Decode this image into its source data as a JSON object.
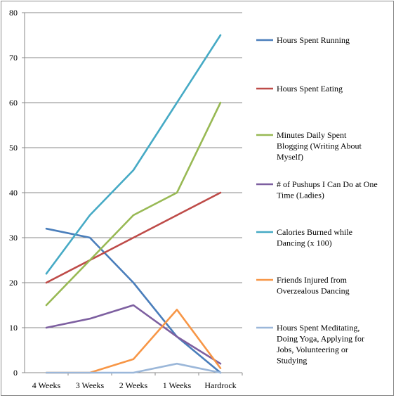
{
  "chart_data": {
    "type": "line",
    "title": "",
    "xlabel": "",
    "ylabel": "",
    "categories": [
      "4 Weeks",
      "3 Weeks",
      "2 Weeks",
      "1 Weeks",
      "Hardrock"
    ],
    "ylim": [
      0,
      80
    ],
    "yticks": [
      0,
      10,
      20,
      30,
      40,
      50,
      60,
      70,
      80
    ],
    "grid": "horizontal",
    "legend_position": "right",
    "series": [
      {
        "name": "Hours Spent Running",
        "color": "#4a7ebb",
        "values": [
          32,
          30,
          20,
          8,
          0
        ]
      },
      {
        "name": "Hours Spent Eating",
        "color": "#be4b48",
        "values": [
          20,
          25,
          30,
          35,
          40
        ]
      },
      {
        "name": "Minutes Daily Spent Blogging (Writing About Myself)",
        "color": "#98b954",
        "values": [
          15,
          25,
          35,
          40,
          60
        ]
      },
      {
        "name": "# of Pushups I Can Do at One Time (Ladies)",
        "color": "#7d5fa0",
        "values": [
          10,
          12,
          15,
          8,
          2
        ]
      },
      {
        "name": "Calories Burned while Dancing (x 100)",
        "color": "#46aac5",
        "values": [
          22,
          35,
          45,
          60,
          75
        ]
      },
      {
        "name": "Friends Injured from Overzealous Dancing",
        "color": "#f79646",
        "values": [
          0,
          0,
          3,
          14,
          1
        ]
      },
      {
        "name": "Hours Spent Meditating, Doing Yoga, Applying for Jobs, Volunteering or Studying",
        "color": "#9bb7d9",
        "values": [
          0,
          0,
          0,
          2,
          0
        ]
      }
    ]
  }
}
